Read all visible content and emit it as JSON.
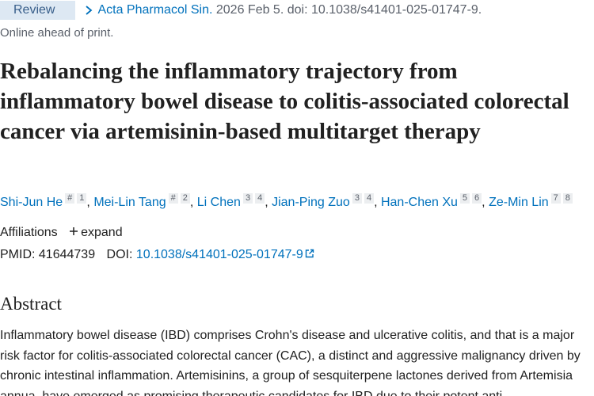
{
  "header": {
    "badge": "Review",
    "journal": "Acta Pharmacol Sin.",
    "citation": "2026 Feb 5. doi: 10.1038/s41401-025-01747-9.",
    "status": "Online ahead of print."
  },
  "title": "Rebalancing the inflammatory trajectory from inflammatory bowel disease to colitis-associated colorectal cancer via artemisinin-based multitarget therapy",
  "author_separator": ",",
  "authors": [
    {
      "name": "Shi-Jun He",
      "marks": [
        "#",
        "1"
      ]
    },
    {
      "name": "Mei-Lin Tang",
      "marks": [
        "#",
        "2"
      ]
    },
    {
      "name": "Li Chen",
      "marks": [
        "3",
        "4"
      ]
    },
    {
      "name": "Jian-Ping Zuo",
      "marks": [
        "3",
        "4"
      ]
    },
    {
      "name": "Han-Chen Xu",
      "marks": [
        "5",
        "6"
      ]
    },
    {
      "name": "Ze-Min Lin",
      "marks": [
        "7",
        "8"
      ]
    }
  ],
  "affiliations": {
    "label": "Affiliations",
    "toggle": "expand"
  },
  "ids": {
    "pmid_label": "PMID:",
    "pmid": "41644739",
    "doi_label": "DOI:",
    "doi": "10.1038/s41401-025-01747-9"
  },
  "abstract": {
    "heading": "Abstract",
    "text": "Inflammatory bowel disease (IBD) comprises Crohn's disease and ulcerative colitis, and that is a major risk factor for colitis-associated colorectal cancer (CAC), a distinct and aggressive malignancy driven by chronic intestinal inflammation. Artemisinins, a group of sesquiterpene lactones derived from Artemisia annua, have emerged as promising therapeutic candidates for IBD due to their potent anti-"
  }
}
